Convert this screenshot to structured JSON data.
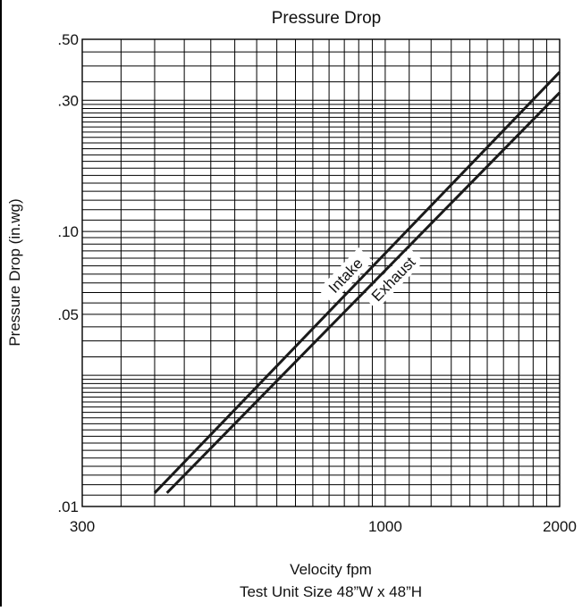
{
  "chart_data": {
    "type": "line",
    "title": "Pressure Drop",
    "xlabel": "Velocity fpm",
    "subtitle": "Test Unit Size 48”W x 48”H",
    "ylabel": "Pressure Drop (in.wg)",
    "x_scale": "log",
    "y_scale": "log",
    "xlim": [
      300,
      2000
    ],
    "ylim": [
      0.01,
      0.5
    ],
    "x_ticks": [
      300,
      1000,
      2000
    ],
    "x_tick_labels": [
      "300",
      "1000",
      "2000"
    ],
    "y_ticks": [
      0.01,
      0.05,
      0.1,
      0.3,
      0.5
    ],
    "y_tick_labels": [
      ".01",
      ".05",
      ".10",
      ".30",
      ".50"
    ],
    "x_grid": [
      300,
      350,
      400,
      450,
      500,
      550,
      600,
      650,
      700,
      750,
      800,
      850,
      900,
      950,
      1000,
      1100,
      1200,
      1300,
      1400,
      1500,
      1600,
      1700,
      1800,
      1900,
      2000
    ],
    "y_grid": [
      0.01,
      0.011,
      0.012,
      0.013,
      0.014,
      0.015,
      0.016,
      0.017,
      0.018,
      0.019,
      0.02,
      0.021,
      0.022,
      0.023,
      0.024,
      0.025,
      0.026,
      0.027,
      0.028,
      0.029,
      0.03,
      0.035,
      0.04,
      0.045,
      0.05,
      0.055,
      0.06,
      0.065,
      0.07,
      0.075,
      0.08,
      0.085,
      0.09,
      0.095,
      0.1,
      0.11,
      0.12,
      0.13,
      0.14,
      0.15,
      0.16,
      0.17,
      0.18,
      0.19,
      0.2,
      0.21,
      0.22,
      0.23,
      0.24,
      0.25,
      0.26,
      0.27,
      0.28,
      0.29,
      0.3,
      0.35,
      0.4,
      0.45,
      0.5
    ],
    "grid": true,
    "series": [
      {
        "name": "Intake",
        "x": [
          400,
          2000
        ],
        "y": [
          0.0112,
          0.38
        ]
      },
      {
        "name": "Exhaust",
        "x": [
          420,
          2000
        ],
        "y": [
          0.0112,
          0.32
        ]
      }
    ]
  },
  "colors": {
    "line": "#1a1a1a",
    "grid": "#000000",
    "background": "#ffffff"
  }
}
